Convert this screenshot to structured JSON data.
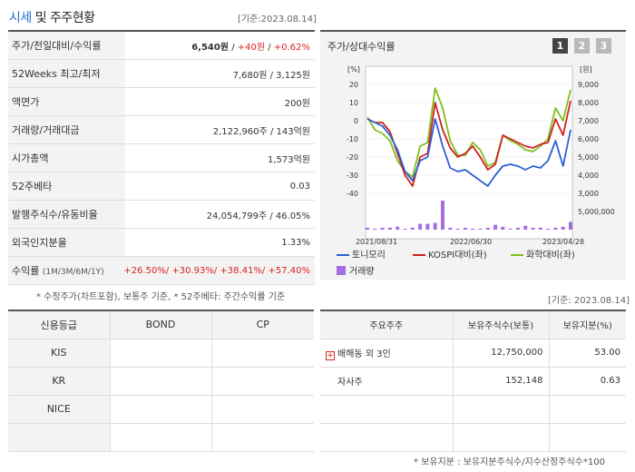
{
  "header": {
    "title_a": "시세",
    "title_b": " 및 주주현황",
    "date": "[기준:2023.08.14]"
  },
  "price_table": {
    "rows": [
      {
        "label": "주가/전일대비/수익률"
      },
      {
        "label": "52Weeks 최고/최저",
        "value": "7,680원 / 3,125원"
      },
      {
        "label": "액면가",
        "value": "200원"
      },
      {
        "label": "거래량/거래대금",
        "value": "2,122,960주 / 143억원"
      },
      {
        "label": "시가총액",
        "value": "1,573억원"
      },
      {
        "label": "52주베타",
        "value": "0.03"
      },
      {
        "label": "발행주식수/유동비율",
        "value": "24,054,799주 / 46.05%"
      },
      {
        "label": "외국인지분율",
        "value": "1.33%"
      }
    ],
    "price": "6,540원",
    "change": "+40원",
    "change_rate": "+0.62%",
    "sep": " / ",
    "return_label": "수익률",
    "return_periods": "(1M/3M/6M/1Y)",
    "returns": "+26.50%/ +30.93%/ +38.41%/ +57.40%",
    "note": "* 수정주가(차트포함), 보통주 기준, * 52주베타: 주간수익률 기준"
  },
  "chart_panel": {
    "title": "주가/상대수익률",
    "period_buttons": [
      "1",
      "2",
      "3"
    ],
    "active_period": "1"
  },
  "chart_data": {
    "type": "line",
    "left_axis_unit": "[%]",
    "right_axis_unit": "[원]",
    "left_ticks": [
      20,
      10,
      0,
      -10,
      -20,
      -30,
      -40
    ],
    "right_ticks": [
      "9,000",
      "8,000",
      "7,000",
      "6,000",
      "5,000",
      "4,000",
      "3,000"
    ],
    "volume_tick": "5,000,000",
    "x_tick_labels": [
      "2021/08/31",
      "2022/06/30",
      "2023/04/28"
    ],
    "ylim": [
      -40,
      20
    ],
    "series": [
      {
        "name": "토니모리",
        "color": "#2a5fd4",
        "values": [
          1,
          -1,
          -3,
          -8,
          -16,
          -28,
          -33,
          -22,
          -20,
          1,
          -14,
          -26,
          -28,
          -27,
          -30,
          -33,
          -36,
          -30,
          -25,
          -24,
          -25,
          -27,
          -25,
          -26,
          -22,
          -11,
          -25,
          -5
        ]
      },
      {
        "name": "KOSPI대비(좌)",
        "color": "#d42020",
        "values": [
          1,
          -1,
          -1,
          -6,
          -18,
          -30,
          -36,
          -20,
          -18,
          10,
          -5,
          -15,
          -20,
          -18,
          -14,
          -20,
          -27,
          -24,
          -8,
          -10,
          -12,
          -14,
          -15,
          -13,
          -12,
          1,
          -8,
          11
        ]
      },
      {
        "name": "화학대비(좌)",
        "color": "#7dbf1c",
        "values": [
          2,
          -5,
          -7,
          -11,
          -22,
          -28,
          -31,
          -14,
          -12,
          18,
          7,
          -11,
          -19,
          -19,
          -12,
          -16,
          -25,
          -23,
          -8,
          -11,
          -13,
          -16,
          -17,
          -14,
          -10,
          7,
          0,
          17
        ]
      }
    ],
    "volume": [
      0.02,
      0.01,
      0.02,
      0.02,
      0.03,
      0.01,
      0.02,
      0.06,
      0.06,
      0.07,
      0.3,
      0.02,
      0.01,
      0.02,
      0.01,
      0.01,
      0.02,
      0.05,
      0.03,
      0.01,
      0.02,
      0.04,
      0.02,
      0.02,
      0.01,
      0.02,
      0.03,
      0.08
    ],
    "volume_color": "#a36ee0",
    "volume_label": "거래량"
  },
  "credit_table": {
    "headers": [
      "신용등급",
      "BOND",
      "CP"
    ],
    "rows": [
      [
        "KIS",
        "",
        ""
      ],
      [
        "KR",
        "",
        ""
      ],
      [
        "NICE",
        "",
        ""
      ],
      [
        "",
        "",
        ""
      ]
    ]
  },
  "shareholder_table": {
    "date": "[기준: 2023.08.14]",
    "headers": [
      "주요주주",
      "보유주식수(보통)",
      "보유지분(%)"
    ],
    "rows": [
      {
        "name": "배해동 외 3인",
        "expandable": true,
        "shares": "12,750,000",
        "pct": "53.00"
      },
      {
        "name": "자사주",
        "expandable": false,
        "shares": "152,148",
        "pct": "0.63"
      },
      {
        "name": "",
        "expandable": false,
        "shares": "",
        "pct": ""
      },
      {
        "name": "",
        "expandable": false,
        "shares": "",
        "pct": ""
      }
    ],
    "note": "* 보유지분 : 보유지분주식수/지수산정주식수*100"
  }
}
